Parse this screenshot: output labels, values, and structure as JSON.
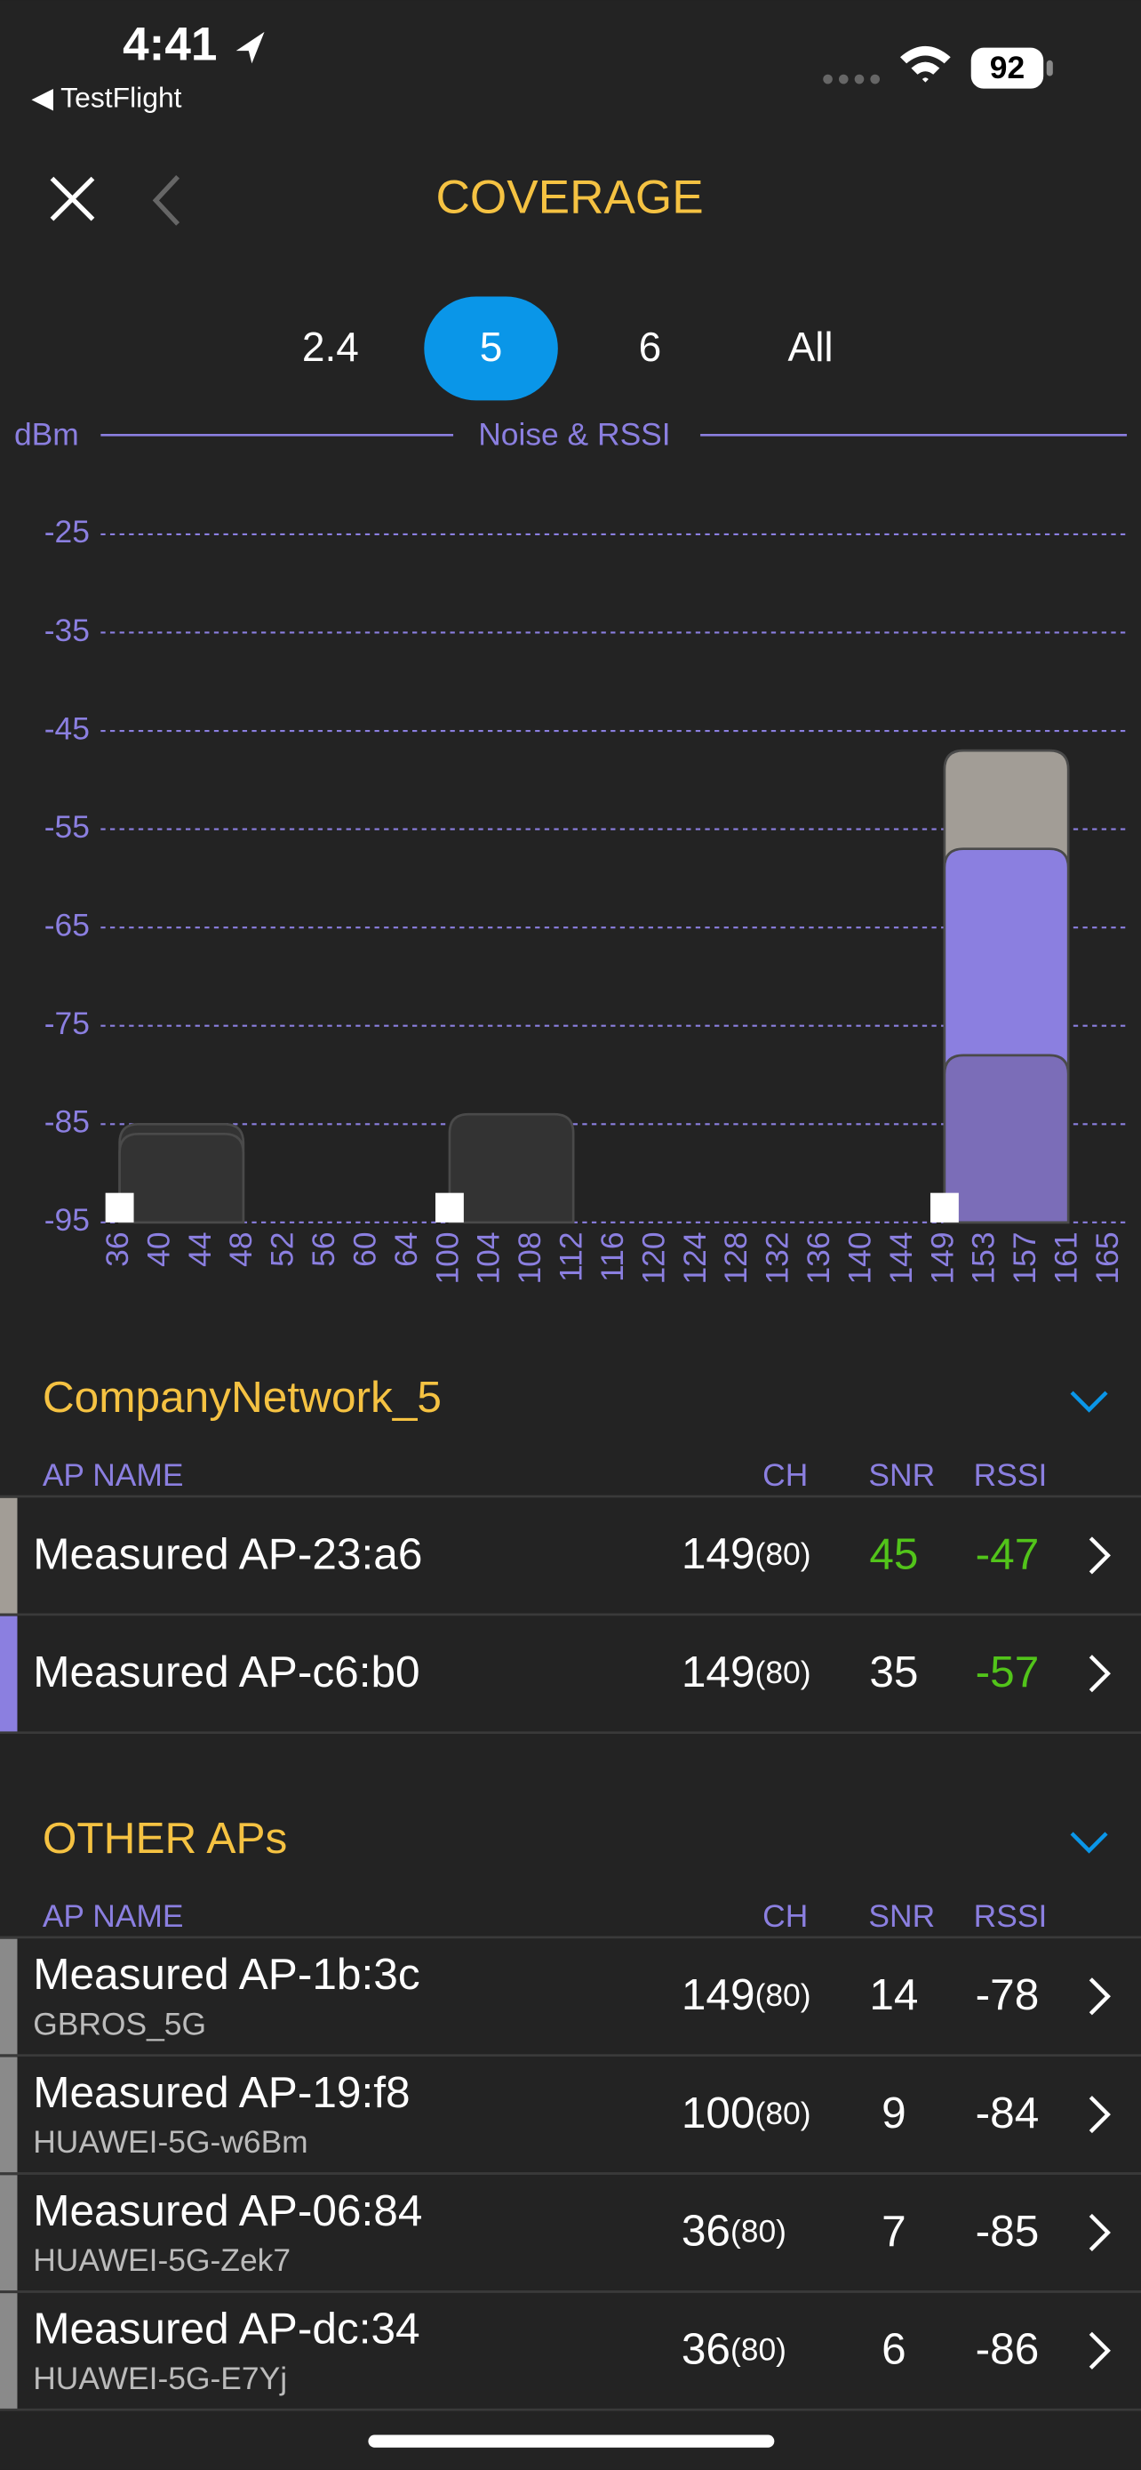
{
  "status_bar": {
    "time": "4:41",
    "back_app": "◀ TestFlight",
    "battery": "92"
  },
  "nav": {
    "title": "COVERAGE"
  },
  "band_tabs": {
    "options": [
      "2.4",
      "5",
      "6",
      "All"
    ],
    "selected": "5"
  },
  "chart_data": {
    "type": "bar",
    "y_label": "dBm",
    "title": "Noise & RSSI",
    "categories": [
      "36",
      "40",
      "44",
      "48",
      "52",
      "56",
      "60",
      "64",
      "100",
      "104",
      "108",
      "112",
      "116",
      "120",
      "124",
      "128",
      "132",
      "136",
      "140",
      "144",
      "149",
      "153",
      "157",
      "161",
      "165"
    ],
    "ylim": [
      -95,
      -25
    ],
    "yticks": [
      -25,
      -35,
      -45,
      -55,
      -65,
      -75,
      -85,
      -95
    ],
    "grid": true,
    "bars": [
      {
        "from": "36",
        "to": "48",
        "value": -85,
        "color": "#333333"
      },
      {
        "from": "36",
        "to": "48",
        "value": -86,
        "color": "#333333"
      },
      {
        "from": "100",
        "to": "112",
        "value": -84,
        "color": "#333333"
      },
      {
        "from": "149",
        "to": "161",
        "value": -47,
        "color": "#a29d96"
      },
      {
        "from": "149",
        "to": "161",
        "value": -57,
        "color": "#8b7fe0"
      },
      {
        "from": "149",
        "to": "161",
        "value": -78,
        "color": "#7b6db8"
      }
    ],
    "noise": {
      "channels": [
        "36",
        "100",
        "149"
      ],
      "values": [
        -92,
        -92,
        -92
      ],
      "color": "#ffffff"
    }
  },
  "sections": [
    {
      "title": "CompanyNetwork_5",
      "columns": [
        "AP NAME",
        "CH",
        "SNR",
        "RSSI"
      ],
      "rows": [
        {
          "name": "Measured AP-23:a6",
          "ch": 149,
          "width": "(80)",
          "snr": 45,
          "rssi": -47,
          "stripe": "#a29d96",
          "snr_color": "#52c41a",
          "rssi_color": "#52c41a"
        },
        {
          "name": "Measured AP-c6:b0",
          "ch": 149,
          "width": "(80)",
          "snr": 35,
          "rssi": -57,
          "stripe": "#8b7fe0",
          "snr_color": "#ffffff",
          "rssi_color": "#52c41a"
        }
      ]
    },
    {
      "title": "OTHER APs",
      "columns": [
        "AP NAME",
        "CH",
        "SNR",
        "RSSI"
      ],
      "rows": [
        {
          "name": "Measured AP-1b:3c",
          "ssid": "GBROS_5G",
          "ch": 149,
          "width": "(80)",
          "snr": 14,
          "rssi": -78,
          "stripe": "#8a8a8a",
          "snr_color": "#ffffff",
          "rssi_color": "#ffffff"
        },
        {
          "name": "Measured AP-19:f8",
          "ssid": "HUAWEI-5G-w6Bm",
          "ch": 100,
          "width": "(80)",
          "snr": 9,
          "rssi": -84,
          "stripe": "#8a8a8a",
          "snr_color": "#ffffff",
          "rssi_color": "#ffffff"
        },
        {
          "name": "Measured AP-06:84",
          "ssid": "HUAWEI-5G-Zek7",
          "ch": 36,
          "width": "(80)",
          "snr": 7,
          "rssi": -85,
          "stripe": "#8a8a8a",
          "snr_color": "#ffffff",
          "rssi_color": "#ffffff"
        },
        {
          "name": "Measured AP-dc:34",
          "ssid": "HUAWEI-5G-E7Yj",
          "ch": 36,
          "width": "(80)",
          "snr": 6,
          "rssi": -86,
          "stripe": "#8a8a8a",
          "snr_color": "#ffffff",
          "rssi_color": "#ffffff"
        }
      ]
    }
  ]
}
